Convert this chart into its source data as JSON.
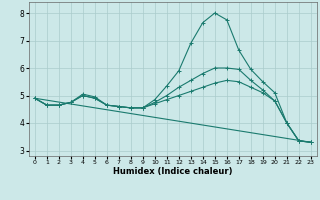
{
  "bg_color": "#cce8e8",
  "grid_color": "#aacccc",
  "line_color": "#1a7a6e",
  "xlabel": "Humidex (Indice chaleur)",
  "xlim": [
    -0.5,
    23.5
  ],
  "ylim": [
    2.8,
    8.4
  ],
  "xticks": [
    0,
    1,
    2,
    3,
    4,
    5,
    6,
    7,
    8,
    9,
    10,
    11,
    12,
    13,
    14,
    15,
    16,
    17,
    18,
    19,
    20,
    21,
    22,
    23
  ],
  "yticks": [
    3,
    4,
    5,
    6,
    7,
    8
  ],
  "lines": [
    {
      "x": [
        0,
        1,
        2,
        3,
        4,
        5,
        6,
        7,
        8,
        9,
        10,
        11,
        12,
        13,
        14,
        15,
        16,
        17,
        18,
        19,
        20,
        21,
        22,
        23
      ],
      "y": [
        4.9,
        4.65,
        4.65,
        4.75,
        5.05,
        4.95,
        4.65,
        4.6,
        4.55,
        4.55,
        4.85,
        5.35,
        5.9,
        6.9,
        7.65,
        8.0,
        7.75,
        6.65,
        5.95,
        5.5,
        5.1,
        4.0,
        3.35,
        3.3
      ],
      "marker": true
    },
    {
      "x": [
        0,
        1,
        2,
        3,
        4,
        5,
        6,
        7,
        8,
        9,
        10,
        11,
        12,
        13,
        14,
        15,
        16,
        17,
        18,
        19,
        20,
        21,
        22,
        23
      ],
      "y": [
        4.9,
        4.65,
        4.65,
        4.75,
        5.0,
        4.9,
        4.65,
        4.6,
        4.55,
        4.55,
        4.75,
        5.0,
        5.3,
        5.55,
        5.8,
        6.0,
        6.0,
        5.95,
        5.55,
        5.2,
        4.8,
        4.0,
        3.35,
        3.3
      ],
      "marker": true
    },
    {
      "x": [
        0,
        1,
        2,
        3,
        4,
        5,
        6,
        7,
        8,
        9,
        10,
        11,
        12,
        13,
        14,
        15,
        16,
        17,
        18,
        19,
        20,
        21,
        22,
        23
      ],
      "y": [
        4.9,
        4.65,
        4.65,
        4.75,
        5.0,
        4.9,
        4.65,
        4.6,
        4.55,
        4.55,
        4.7,
        4.85,
        5.0,
        5.15,
        5.3,
        5.45,
        5.55,
        5.5,
        5.3,
        5.1,
        4.8,
        4.0,
        3.35,
        3.3
      ],
      "marker": true
    },
    {
      "x": [
        0,
        23
      ],
      "y": [
        4.9,
        3.3
      ],
      "marker": false
    }
  ]
}
